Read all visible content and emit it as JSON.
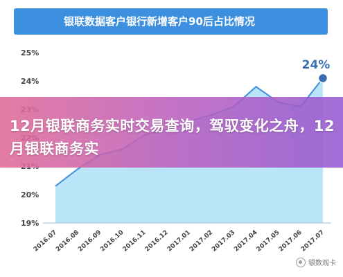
{
  "chart_data": {
    "type": "area",
    "title": "银联数据客户银行新增客户90后占比情况",
    "categories": [
      "2016.07",
      "2016.08",
      "2016.09",
      "2016.10",
      "2016.11",
      "2016.12",
      "2017.01",
      "2017.02",
      "2017.03",
      "2017.04",
      "2017.05",
      "2017.06",
      "2017.07"
    ],
    "series": [
      {
        "values": [
          20.3,
          20.9,
          21.4,
          21.6,
          22.1,
          22.3,
          22.6,
          22.8,
          23.1,
          23.8,
          23.25,
          23.1,
          24.1
        ]
      }
    ],
    "ylim": [
      19,
      25
    ],
    "yticks": [
      "19%",
      "20%",
      "21%",
      "22%",
      "23%",
      "24%",
      "25%"
    ],
    "xlabel": "",
    "ylabel": "",
    "grid": false,
    "highlight": {
      "index": 12,
      "label": "24%"
    },
    "colors": {
      "line": "#3d8fe0",
      "fill": "#aee0f7",
      "marker": "#3b6eb0"
    }
  },
  "overlay": {
    "text": "12月银联商务实时交易查询，驾驭变化之舟，12月银联商务实"
  },
  "watermark": {
    "text": "银数观卡",
    "icon": "wechat-icon"
  }
}
